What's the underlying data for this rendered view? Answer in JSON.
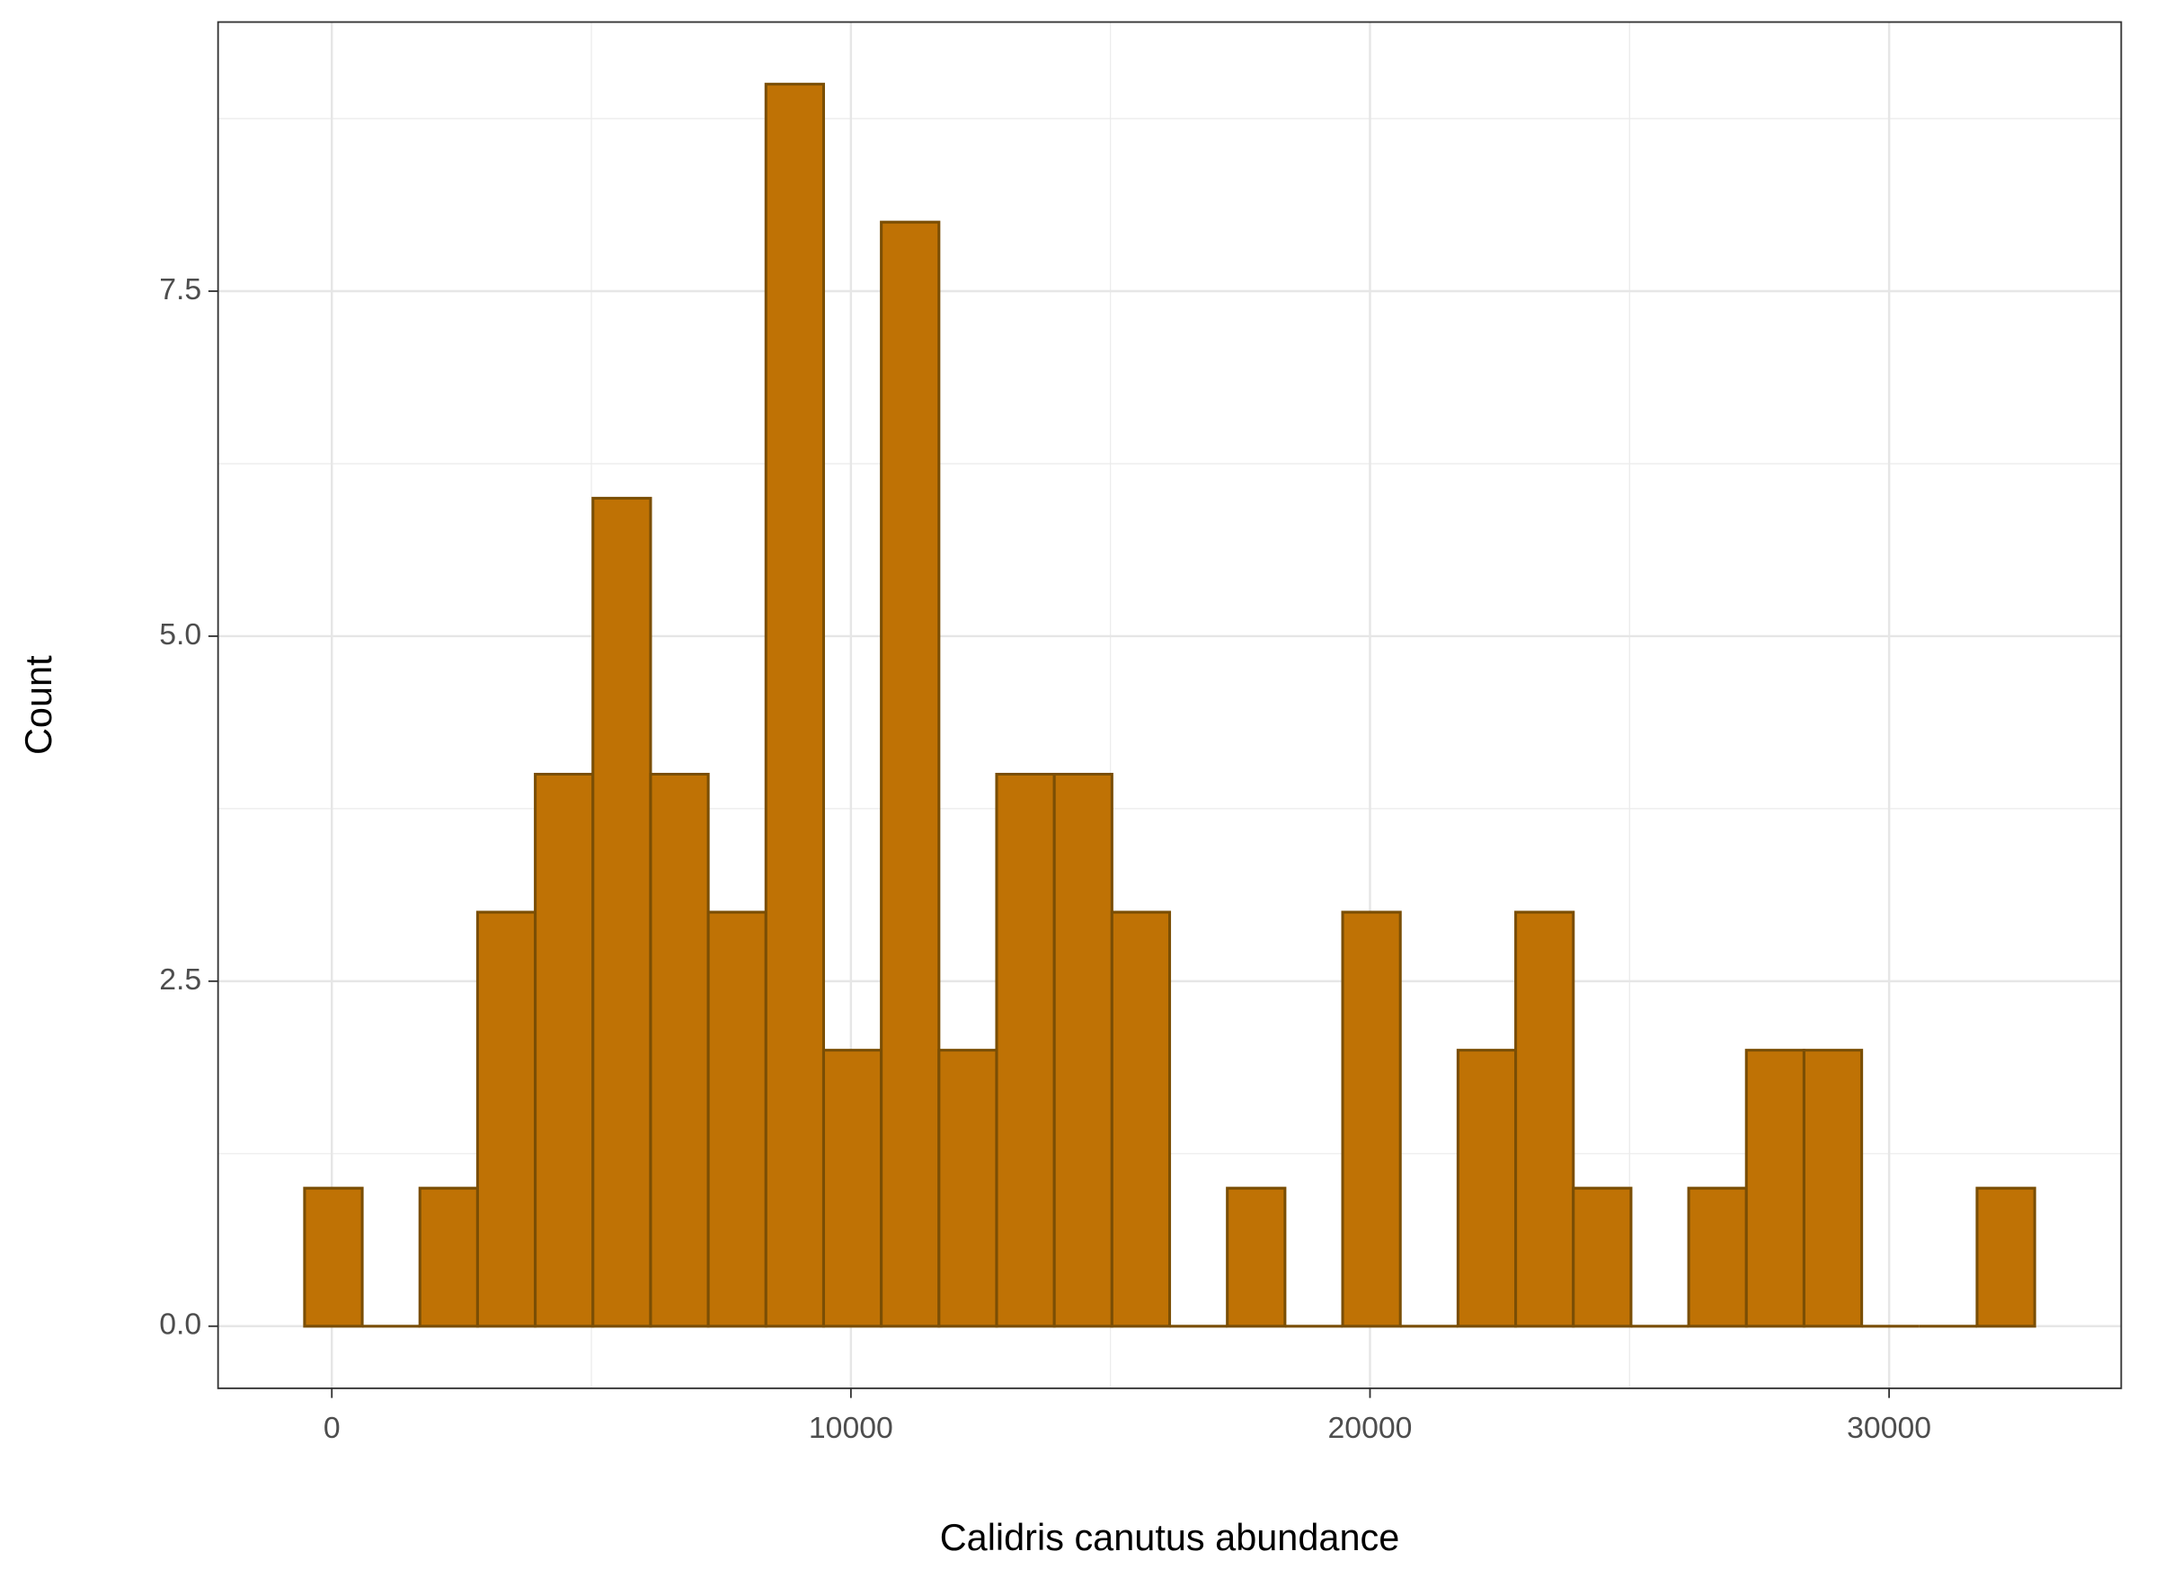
{
  "chart_data": {
    "type": "histogram",
    "xlabel": "Calidris canutus abundance",
    "ylabel": "Count",
    "bins": [
      -525,
      586,
      1697,
      2808,
      3919,
      5030,
      6141,
      7252,
      8363,
      9474,
      10585,
      11696,
      12807,
      13918,
      15029,
      16140,
      17251,
      18362,
      19473,
      20584,
      21695,
      22806,
      23917,
      25028,
      26139,
      27250,
      28361,
      29472,
      30583,
      31694,
      32805
    ],
    "counts": [
      1,
      0,
      1,
      3,
      4,
      6,
      4,
      3,
      9,
      2,
      8,
      2,
      4,
      4,
      3,
      0,
      1,
      0,
      3,
      0,
      2,
      3,
      1,
      0,
      1,
      2,
      2,
      0,
      0,
      1
    ],
    "color": "#bf7205",
    "edgecolor": "#7a4e05",
    "xlim": [
      -2191.5,
      34471.5
    ],
    "xticks": [
      0,
      10000,
      20000,
      30000
    ],
    "ylim": [
      -0.45,
      9.45
    ],
    "yticks": [
      {
        "value": 0,
        "label": "0.0"
      },
      2.5,
      {
        "value": 5,
        "label": "5.0"
      },
      7.5
    ],
    "grid": true
  }
}
